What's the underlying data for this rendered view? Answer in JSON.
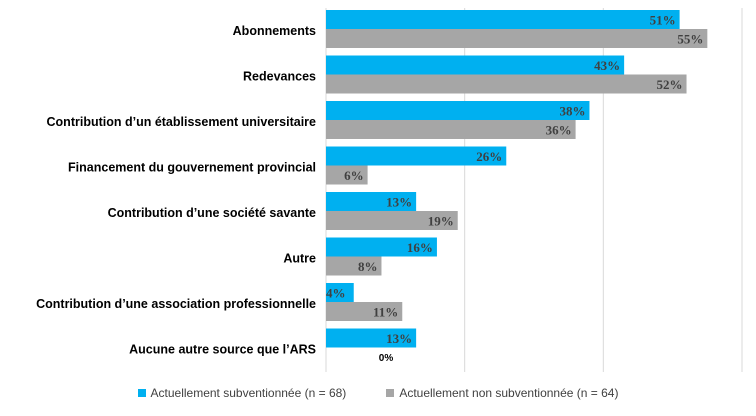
{
  "chart_data": {
    "type": "bar",
    "orientation": "horizontal",
    "categories": [
      "Abonnements",
      "Redevances",
      "Contribution d’un établissement universitaire",
      "Financement du gouvernement provincial",
      "Contribution d’une société savante",
      "Autre",
      "Contribution d’une association professionnelle",
      "Aucune autre source que l’ARS"
    ],
    "series": [
      {
        "name": "Actuellement subventionnée (n = 68)",
        "color": "#00B0F0",
        "values": [
          51,
          43,
          38,
          26,
          13,
          16,
          4,
          13
        ]
      },
      {
        "name": "Actuellement non subventionnée (n = 64)",
        "color": "#A6A6A6",
        "values": [
          55,
          52,
          36,
          6,
          19,
          8,
          11,
          0
        ]
      }
    ],
    "value_suffix": "%",
    "xlim": [
      0,
      60
    ],
    "gridlines": [
      0,
      20,
      40,
      60
    ],
    "grid": true,
    "legend_position": "bottom",
    "title": "",
    "xlabel": "",
    "ylabel": ""
  }
}
